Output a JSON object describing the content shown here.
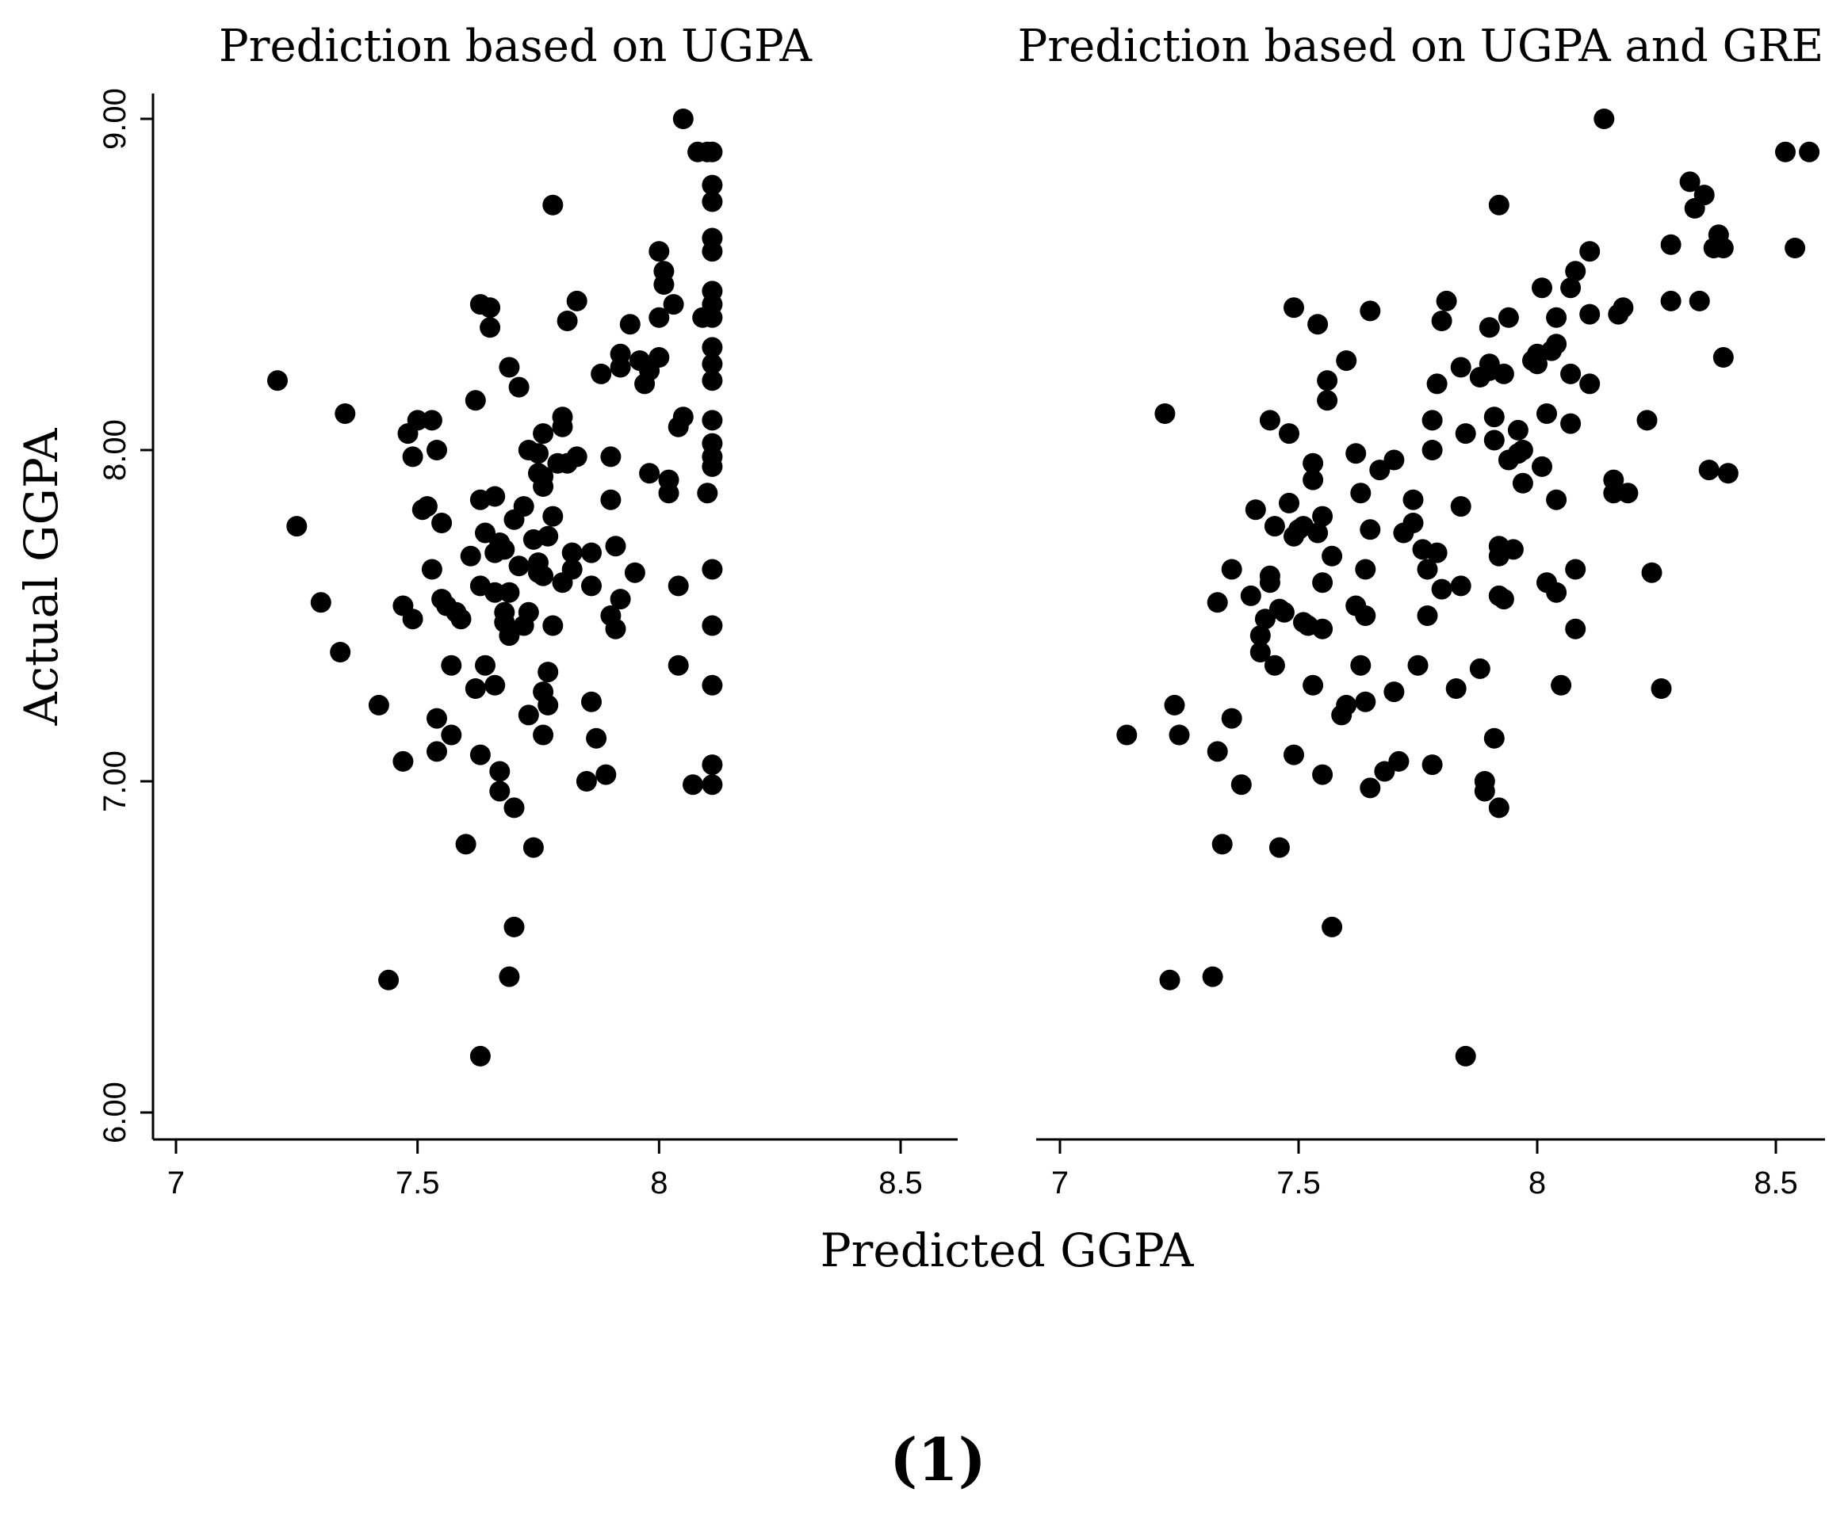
{
  "ylabel": "Actual GGPA",
  "xlabel": "Predicted GGPA",
  "caption": "(1)",
  "colors": {
    "points": "#000000",
    "axes": "#000000",
    "background": "#ffffff"
  },
  "chart_data": [
    {
      "type": "scatter",
      "title": "Prediction based on UGPA",
      "xlabel": "Predicted GGPA",
      "ylabel": "Actual GGPA",
      "xlim": [
        6.95,
        8.63
      ],
      "ylim": [
        5.93,
        9.06
      ],
      "xticks": [
        7,
        7.5,
        8,
        8.5
      ],
      "xtick_labels": [
        "7",
        "7.5",
        "8",
        "8.5"
      ],
      "yticks": [
        6,
        7,
        8,
        9
      ],
      "ytick_labels": [
        "6.00",
        "7.00",
        "8.00",
        "9.00"
      ],
      "points": [
        [
          7.21,
          8.21
        ],
        [
          7.25,
          7.77
        ],
        [
          7.3,
          7.54
        ],
        [
          7.34,
          7.39
        ],
        [
          7.35,
          8.11
        ],
        [
          7.42,
          7.23
        ],
        [
          7.44,
          6.4
        ],
        [
          7.47,
          7.06
        ],
        [
          7.47,
          7.53
        ],
        [
          7.48,
          8.05
        ],
        [
          7.49,
          7.98
        ],
        [
          7.49,
          7.49
        ],
        [
          7.5,
          8.09
        ],
        [
          7.51,
          7.82
        ],
        [
          7.52,
          7.83
        ],
        [
          7.53,
          7.64
        ],
        [
          7.53,
          8.09
        ],
        [
          7.54,
          8.0
        ],
        [
          7.54,
          7.19
        ],
        [
          7.54,
          7.09
        ],
        [
          7.55,
          7.55
        ],
        [
          7.55,
          7.78
        ],
        [
          7.56,
          7.53
        ],
        [
          7.57,
          7.14
        ],
        [
          7.57,
          7.35
        ],
        [
          7.58,
          7.51
        ],
        [
          7.59,
          7.49
        ],
        [
          7.6,
          6.81
        ],
        [
          7.61,
          7.68
        ],
        [
          7.62,
          7.28
        ],
        [
          7.62,
          8.15
        ],
        [
          7.63,
          7.85
        ],
        [
          7.63,
          7.59
        ],
        [
          7.63,
          7.08
        ],
        [
          7.63,
          6.17
        ],
        [
          7.63,
          8.44
        ],
        [
          7.64,
          7.75
        ],
        [
          7.64,
          7.35
        ],
        [
          7.65,
          8.37
        ],
        [
          7.65,
          8.43
        ],
        [
          7.66,
          7.69
        ],
        [
          7.66,
          7.57
        ],
        [
          7.66,
          7.29
        ],
        [
          7.66,
          7.86
        ],
        [
          7.67,
          7.03
        ],
        [
          7.67,
          6.97
        ],
        [
          7.67,
          7.72
        ],
        [
          7.68,
          7.51
        ],
        [
          7.68,
          7.7
        ],
        [
          7.68,
          7.48
        ],
        [
          7.69,
          7.44
        ],
        [
          7.69,
          6.41
        ],
        [
          7.69,
          7.57
        ],
        [
          7.69,
          8.25
        ],
        [
          7.7,
          6.56
        ],
        [
          7.7,
          7.79
        ],
        [
          7.7,
          6.92
        ],
        [
          7.71,
          7.65
        ],
        [
          7.71,
          8.19
        ],
        [
          7.72,
          7.83
        ],
        [
          7.72,
          7.47
        ],
        [
          7.73,
          7.51
        ],
        [
          7.73,
          8.0
        ],
        [
          7.73,
          7.2
        ],
        [
          7.74,
          6.8
        ],
        [
          7.74,
          7.73
        ],
        [
          7.75,
          7.99
        ],
        [
          7.75,
          7.63
        ],
        [
          7.75,
          7.93
        ],
        [
          7.75,
          7.66
        ],
        [
          7.76,
          7.89
        ],
        [
          7.76,
          7.14
        ],
        [
          7.76,
          8.05
        ],
        [
          7.76,
          7.27
        ],
        [
          7.76,
          7.62
        ],
        [
          7.76,
          7.92
        ],
        [
          7.77,
          7.33
        ],
        [
          7.77,
          7.23
        ],
        [
          7.77,
          7.74
        ],
        [
          7.78,
          7.8
        ],
        [
          7.78,
          7.47
        ],
        [
          7.78,
          8.74
        ],
        [
          7.79,
          7.96
        ],
        [
          7.8,
          8.07
        ],
        [
          7.8,
          8.1
        ],
        [
          7.8,
          7.6
        ],
        [
          7.81,
          8.39
        ],
        [
          7.81,
          7.96
        ],
        [
          7.82,
          7.64
        ],
        [
          7.82,
          7.69
        ],
        [
          7.83,
          7.98
        ],
        [
          7.83,
          8.45
        ],
        [
          7.85,
          7.0
        ],
        [
          7.86,
          7.59
        ],
        [
          7.86,
          7.24
        ],
        [
          7.86,
          7.69
        ],
        [
          7.87,
          7.13
        ],
        [
          7.88,
          8.23
        ],
        [
          7.89,
          7.02
        ],
        [
          7.9,
          7.5
        ],
        [
          7.9,
          7.98
        ],
        [
          7.9,
          7.85
        ],
        [
          7.91,
          7.71
        ],
        [
          7.91,
          7.46
        ],
        [
          7.92,
          8.25
        ],
        [
          7.92,
          8.29
        ],
        [
          7.92,
          7.55
        ],
        [
          7.94,
          8.38
        ],
        [
          7.95,
          7.63
        ],
        [
          7.96,
          8.27
        ],
        [
          7.97,
          8.2
        ],
        [
          7.98,
          8.24
        ],
        [
          7.98,
          7.93
        ],
        [
          8.0,
          8.6
        ],
        [
          8.0,
          8.4
        ],
        [
          8.0,
          8.28
        ],
        [
          8.01,
          8.54
        ],
        [
          8.01,
          8.5
        ],
        [
          8.02,
          7.91
        ],
        [
          8.02,
          7.87
        ],
        [
          8.03,
          8.44
        ],
        [
          8.04,
          7.59
        ],
        [
          8.04,
          7.35
        ],
        [
          8.04,
          8.07
        ],
        [
          8.05,
          8.1
        ],
        [
          8.05,
          9.0
        ],
        [
          8.07,
          6.99
        ],
        [
          8.08,
          8.9
        ],
        [
          8.09,
          8.4
        ],
        [
          8.1,
          7.87
        ],
        [
          8.1,
          8.9
        ],
        [
          8.11,
          8.9
        ],
        [
          8.11,
          8.8
        ],
        [
          8.11,
          8.75
        ],
        [
          8.11,
          8.64
        ],
        [
          8.11,
          8.6
        ],
        [
          8.11,
          8.48
        ],
        [
          8.11,
          8.44
        ],
        [
          8.11,
          8.4
        ],
        [
          8.11,
          8.31
        ],
        [
          8.11,
          8.26
        ],
        [
          8.11,
          8.21
        ],
        [
          8.11,
          8.09
        ],
        [
          8.11,
          8.02
        ],
        [
          8.11,
          7.98
        ],
        [
          8.11,
          7.95
        ],
        [
          8.11,
          7.64
        ],
        [
          8.11,
          7.47
        ],
        [
          8.11,
          7.29
        ],
        [
          8.11,
          7.05
        ],
        [
          8.11,
          6.99
        ]
      ]
    },
    {
      "type": "scatter",
      "title": "Prediction based on UGPA and GRE",
      "xlabel": "Predicted GGPA",
      "ylabel": "Actual GGPA",
      "xlim": [
        6.95,
        8.58
      ],
      "ylim": [
        5.93,
        9.06
      ],
      "xticks": [
        7,
        7.5,
        8,
        8.5
      ],
      "xtick_labels": [
        "7",
        "7.5",
        "8",
        "8.5"
      ],
      "yticks": [
        6,
        7,
        8,
        9
      ],
      "points": [
        [
          7.14,
          7.14
        ],
        [
          7.22,
          8.11
        ],
        [
          7.23,
          6.4
        ],
        [
          7.24,
          7.23
        ],
        [
          7.25,
          7.14
        ],
        [
          7.32,
          6.41
        ],
        [
          7.33,
          7.54
        ],
        [
          7.33,
          7.09
        ],
        [
          7.34,
          6.81
        ],
        [
          7.36,
          7.19
        ],
        [
          7.36,
          7.64
        ],
        [
          7.38,
          6.99
        ],
        [
          7.4,
          7.56
        ],
        [
          7.41,
          7.82
        ],
        [
          7.42,
          7.39
        ],
        [
          7.42,
          7.44
        ],
        [
          7.43,
          7.49
        ],
        [
          7.44,
          7.62
        ],
        [
          7.44,
          7.6
        ],
        [
          7.44,
          8.09
        ],
        [
          7.45,
          7.77
        ],
        [
          7.45,
          7.35
        ],
        [
          7.46,
          7.52
        ],
        [
          7.46,
          6.8
        ],
        [
          7.47,
          7.51
        ],
        [
          7.48,
          8.05
        ],
        [
          7.48,
          7.84
        ],
        [
          7.49,
          7.08
        ],
        [
          7.49,
          7.74
        ],
        [
          7.49,
          8.43
        ],
        [
          7.5,
          7.76
        ],
        [
          7.51,
          7.48
        ],
        [
          7.51,
          7.77
        ],
        [
          7.52,
          7.47
        ],
        [
          7.53,
          7.29
        ],
        [
          7.53,
          7.96
        ],
        [
          7.53,
          7.91
        ],
        [
          7.54,
          7.75
        ],
        [
          7.54,
          8.38
        ],
        [
          7.55,
          7.46
        ],
        [
          7.55,
          7.6
        ],
        [
          7.55,
          7.02
        ],
        [
          7.55,
          7.8
        ],
        [
          7.56,
          8.15
        ],
        [
          7.56,
          8.21
        ],
        [
          7.57,
          7.68
        ],
        [
          7.57,
          6.56
        ],
        [
          7.59,
          7.2
        ],
        [
          7.6,
          8.27
        ],
        [
          7.6,
          7.23
        ],
        [
          7.62,
          7.99
        ],
        [
          7.62,
          7.53
        ],
        [
          7.63,
          7.87
        ],
        [
          7.63,
          7.35
        ],
        [
          7.64,
          7.5
        ],
        [
          7.64,
          7.24
        ],
        [
          7.64,
          7.64
        ],
        [
          7.65,
          6.98
        ],
        [
          7.65,
          7.76
        ],
        [
          7.65,
          8.42
        ],
        [
          7.67,
          7.94
        ],
        [
          7.68,
          7.03
        ],
        [
          7.7,
          7.97
        ],
        [
          7.7,
          7.27
        ],
        [
          7.71,
          7.06
        ],
        [
          7.72,
          7.75
        ],
        [
          7.74,
          7.85
        ],
        [
          7.74,
          7.78
        ],
        [
          7.75,
          7.35
        ],
        [
          7.76,
          7.7
        ],
        [
          7.77,
          7.5
        ],
        [
          7.77,
          7.64
        ],
        [
          7.78,
          8.0
        ],
        [
          7.78,
          7.05
        ],
        [
          7.78,
          8.09
        ],
        [
          7.79,
          8.2
        ],
        [
          7.79,
          7.69
        ],
        [
          7.8,
          8.39
        ],
        [
          7.8,
          7.58
        ],
        [
          7.81,
          8.45
        ],
        [
          7.83,
          7.28
        ],
        [
          7.84,
          7.59
        ],
        [
          7.84,
          8.25
        ],
        [
          7.84,
          7.83
        ],
        [
          7.85,
          6.17
        ],
        [
          7.85,
          8.05
        ],
        [
          7.88,
          8.22
        ],
        [
          7.88,
          7.34
        ],
        [
          7.89,
          6.97
        ],
        [
          7.89,
          7.0
        ],
        [
          7.9,
          8.26
        ],
        [
          7.9,
          8.24
        ],
        [
          7.9,
          8.37
        ],
        [
          7.91,
          8.03
        ],
        [
          7.91,
          7.13
        ],
        [
          7.91,
          8.1
        ],
        [
          7.92,
          7.71
        ],
        [
          7.92,
          7.68
        ],
        [
          7.92,
          7.56
        ],
        [
          7.92,
          6.92
        ],
        [
          7.92,
          8.74
        ],
        [
          7.93,
          7.55
        ],
        [
          7.93,
          8.23
        ],
        [
          7.94,
          7.97
        ],
        [
          7.94,
          8.4
        ],
        [
          7.95,
          7.7
        ],
        [
          7.96,
          8.06
        ],
        [
          7.96,
          7.99
        ],
        [
          7.97,
          7.9
        ],
        [
          7.97,
          8.0
        ],
        [
          7.99,
          8.27
        ],
        [
          8.0,
          8.29
        ],
        [
          8.0,
          8.26
        ],
        [
          8.01,
          8.49
        ],
        [
          8.01,
          7.95
        ],
        [
          8.02,
          7.6
        ],
        [
          8.02,
          8.11
        ],
        [
          8.03,
          8.3
        ],
        [
          8.04,
          7.57
        ],
        [
          8.04,
          8.4
        ],
        [
          8.04,
          7.85
        ],
        [
          8.04,
          8.32
        ],
        [
          8.05,
          7.29
        ],
        [
          8.07,
          8.23
        ],
        [
          8.07,
          8.49
        ],
        [
          8.07,
          8.08
        ],
        [
          8.08,
          7.46
        ],
        [
          8.08,
          8.54
        ],
        [
          8.08,
          7.64
        ],
        [
          8.11,
          8.41
        ],
        [
          8.11,
          8.2
        ],
        [
          8.11,
          8.6
        ],
        [
          8.14,
          9.0
        ],
        [
          8.16,
          7.91
        ],
        [
          8.16,
          7.87
        ],
        [
          8.17,
          8.41
        ],
        [
          8.18,
          8.43
        ],
        [
          8.19,
          7.87
        ],
        [
          8.23,
          8.09
        ],
        [
          8.24,
          7.63
        ],
        [
          8.26,
          7.28
        ],
        [
          8.28,
          8.62
        ],
        [
          8.28,
          8.45
        ],
        [
          8.32,
          8.81
        ],
        [
          8.33,
          8.73
        ],
        [
          8.34,
          8.45
        ],
        [
          8.35,
          8.77
        ],
        [
          8.36,
          7.94
        ],
        [
          8.37,
          8.61
        ],
        [
          8.38,
          8.65
        ],
        [
          8.39,
          8.61
        ],
        [
          8.39,
          8.28
        ],
        [
          8.4,
          7.93
        ],
        [
          8.52,
          8.9
        ],
        [
          8.54,
          8.61
        ],
        [
          8.57,
          8.9
        ]
      ]
    }
  ]
}
